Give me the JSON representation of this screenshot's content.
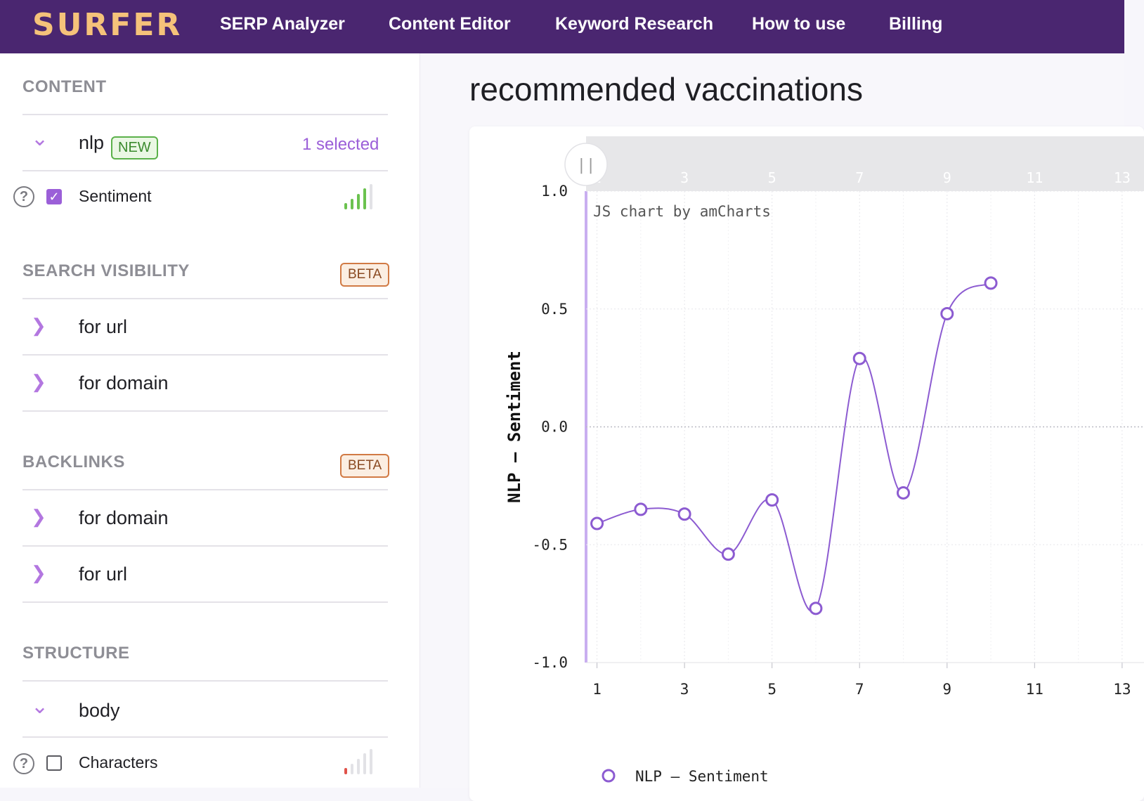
{
  "app": {
    "logo": "SURFER",
    "nav": [
      "SERP Analyzer",
      "Content Editor",
      "Keyword Research",
      "How to use",
      "Billing"
    ]
  },
  "sidebar": {
    "content": {
      "title": "CONTENT",
      "nlp": {
        "label": "nlp",
        "badge": "NEW",
        "selected": "1 selected"
      },
      "items": [
        {
          "label": "Sentiment",
          "checked": true
        }
      ]
    },
    "search_visibility": {
      "title": "SEARCH VISIBILITY",
      "badge": "BETA",
      "items": [
        "for url",
        "for domain"
      ]
    },
    "backlinks": {
      "title": "BACKLINKS",
      "badge": "BETA",
      "items": [
        "for domain",
        "for url"
      ]
    },
    "structure": {
      "title": "STRUCTURE",
      "group": "body",
      "items": [
        {
          "label": "Characters",
          "checked": false
        }
      ]
    },
    "icons": {
      "help": "?",
      "check": "✓",
      "expand": "❯",
      "collapse": "⌄"
    }
  },
  "main": {
    "title": "recommended vaccinations"
  },
  "chart_data": {
    "type": "line",
    "watermark": "JS chart by amCharts",
    "ylabel": "NLP – Sentiment",
    "xlabel": "",
    "legend": "NLP – Sentiment",
    "legend_position": "bottom",
    "ylim": [
      -1.0,
      1.0
    ],
    "yticks": [
      "1.0",
      "0.5",
      "0.0",
      "-0.5",
      "-1.0"
    ],
    "xlim": [
      0.75,
      13.5
    ],
    "xticks": [
      "1",
      "3",
      "5",
      "7",
      "9",
      "11",
      "13"
    ],
    "grid": true,
    "scrollbar_handle": "||",
    "color": "#8c5bd1",
    "series": [
      {
        "name": "NLP – Sentiment",
        "x": [
          1,
          2,
          3,
          4,
          5,
          6,
          7,
          8,
          9,
          10
        ],
        "values": [
          -0.41,
          -0.35,
          -0.37,
          -0.54,
          -0.31,
          -0.77,
          0.29,
          -0.28,
          0.48,
          0.61
        ]
      }
    ]
  }
}
